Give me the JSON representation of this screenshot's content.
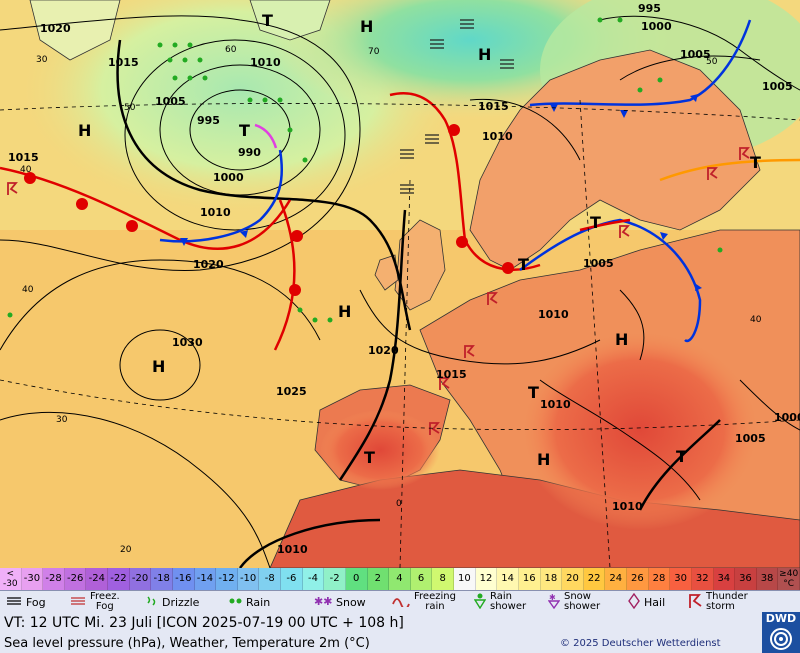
{
  "map": {
    "isobar_labels": [
      "1020",
      "1015",
      "1005",
      "995",
      "990",
      "1000",
      "1010",
      "1020",
      "1030",
      "1025",
      "1015",
      "1010",
      "1020",
      "1015",
      "1010",
      "1005",
      "1000",
      "1005",
      "1010",
      "1005",
      "1000",
      "1010",
      "1015",
      "1010",
      "1005",
      "995",
      "1005",
      "1015",
      "1010",
      "1010",
      "1005",
      "1005",
      "1010",
      "1015",
      "1010",
      "1005",
      "1000",
      "1010",
      "1010",
      "1015",
      "1010"
    ],
    "pressure_centres": [
      "H",
      "T",
      "H",
      "H",
      "H",
      "T",
      "H",
      "T",
      "H",
      "T",
      "T",
      "T",
      "T",
      "T",
      "H",
      "H"
    ],
    "temperature_labels": [
      "40",
      "30",
      "20",
      "40",
      "30",
      "50",
      "60",
      "70",
      "50",
      "40",
      "30",
      "20",
      "0",
      "-10",
      "10",
      "0",
      "10",
      "20"
    ],
    "grid_degrees": [
      "0",
      "10"
    ]
  },
  "scale": {
    "low_label_top": "<",
    "low_label_bottom": "-30",
    "values": [
      "-30",
      "-28",
      "-26",
      "-24",
      "-22",
      "-20",
      "-18",
      "-16",
      "-14",
      "-12",
      "-10",
      "-8",
      "-6",
      "-4",
      "-2",
      "0",
      "2",
      "4",
      "6",
      "8",
      "10",
      "12",
      "14",
      "16",
      "18",
      "20",
      "22",
      "24",
      "26",
      "28",
      "30",
      "32",
      "34",
      "36",
      "38"
    ],
    "colors": [
      "#e8a0f0",
      "#d080e8",
      "#c070e0",
      "#b060d8",
      "#a060e0",
      "#9070e0",
      "#8080e8",
      "#7090f0",
      "#70a0f0",
      "#70b0f0",
      "#80c0f0",
      "#80d0f0",
      "#80e0f0",
      "#90f0e8",
      "#90f0c8",
      "#60e080",
      "#70e070",
      "#90e870",
      "#b0f070",
      "#d0f870",
      "#f8f8f8",
      "#ffffd0",
      "#fff8b0",
      "#fff090",
      "#ffe880",
      "#ffd860",
      "#ffc840",
      "#ffb040",
      "#ff9840",
      "#ff8040",
      "#f86040",
      "#e85040",
      "#d84040",
      "#c84040",
      "#b84848"
    ],
    "high_label_top": "≥40",
    "high_label_bottom": "°C"
  },
  "legend": {
    "items": [
      {
        "label": "Fog",
        "icon": "fog-icon"
      },
      {
        "label": "Freez.\nFog",
        "icon": "freezing-fog-icon"
      },
      {
        "label": "Drizzle",
        "icon": "drizzle-icon"
      },
      {
        "label": "Rain",
        "icon": "rain-icon"
      },
      {
        "label": "Snow",
        "icon": "snow-icon"
      },
      {
        "label": "Freezing\nrain",
        "icon": "freezing-rain-icon"
      },
      {
        "label": "Rain\nshower",
        "icon": "rain-shower-icon"
      },
      {
        "label": "Snow\nshower",
        "icon": "snow-shower-icon"
      },
      {
        "label": "Hail",
        "icon": "hail-icon"
      },
      {
        "label": "Thunder\nstorm",
        "icon": "thunderstorm-icon"
      }
    ]
  },
  "footer": {
    "valid_time": "VT: 12 UTC Mi.   23 Juli [ICON 2025-07-19  00 UTC + 108 h]",
    "caption": "Sea level pressure (hPa), Weather, Temperature 2m (°C)",
    "copyright": "© 2025 Deutscher Wetterdienst",
    "logo": "DWD"
  },
  "colors": {
    "warm_front": "#e00000",
    "cold_front": "#0033dd",
    "occlusion": "#e040e0",
    "trough": "#ff9900",
    "sea_warm": "#f6c36a",
    "land": "#f08a5a",
    "cool": "#b8ecb0"
  }
}
